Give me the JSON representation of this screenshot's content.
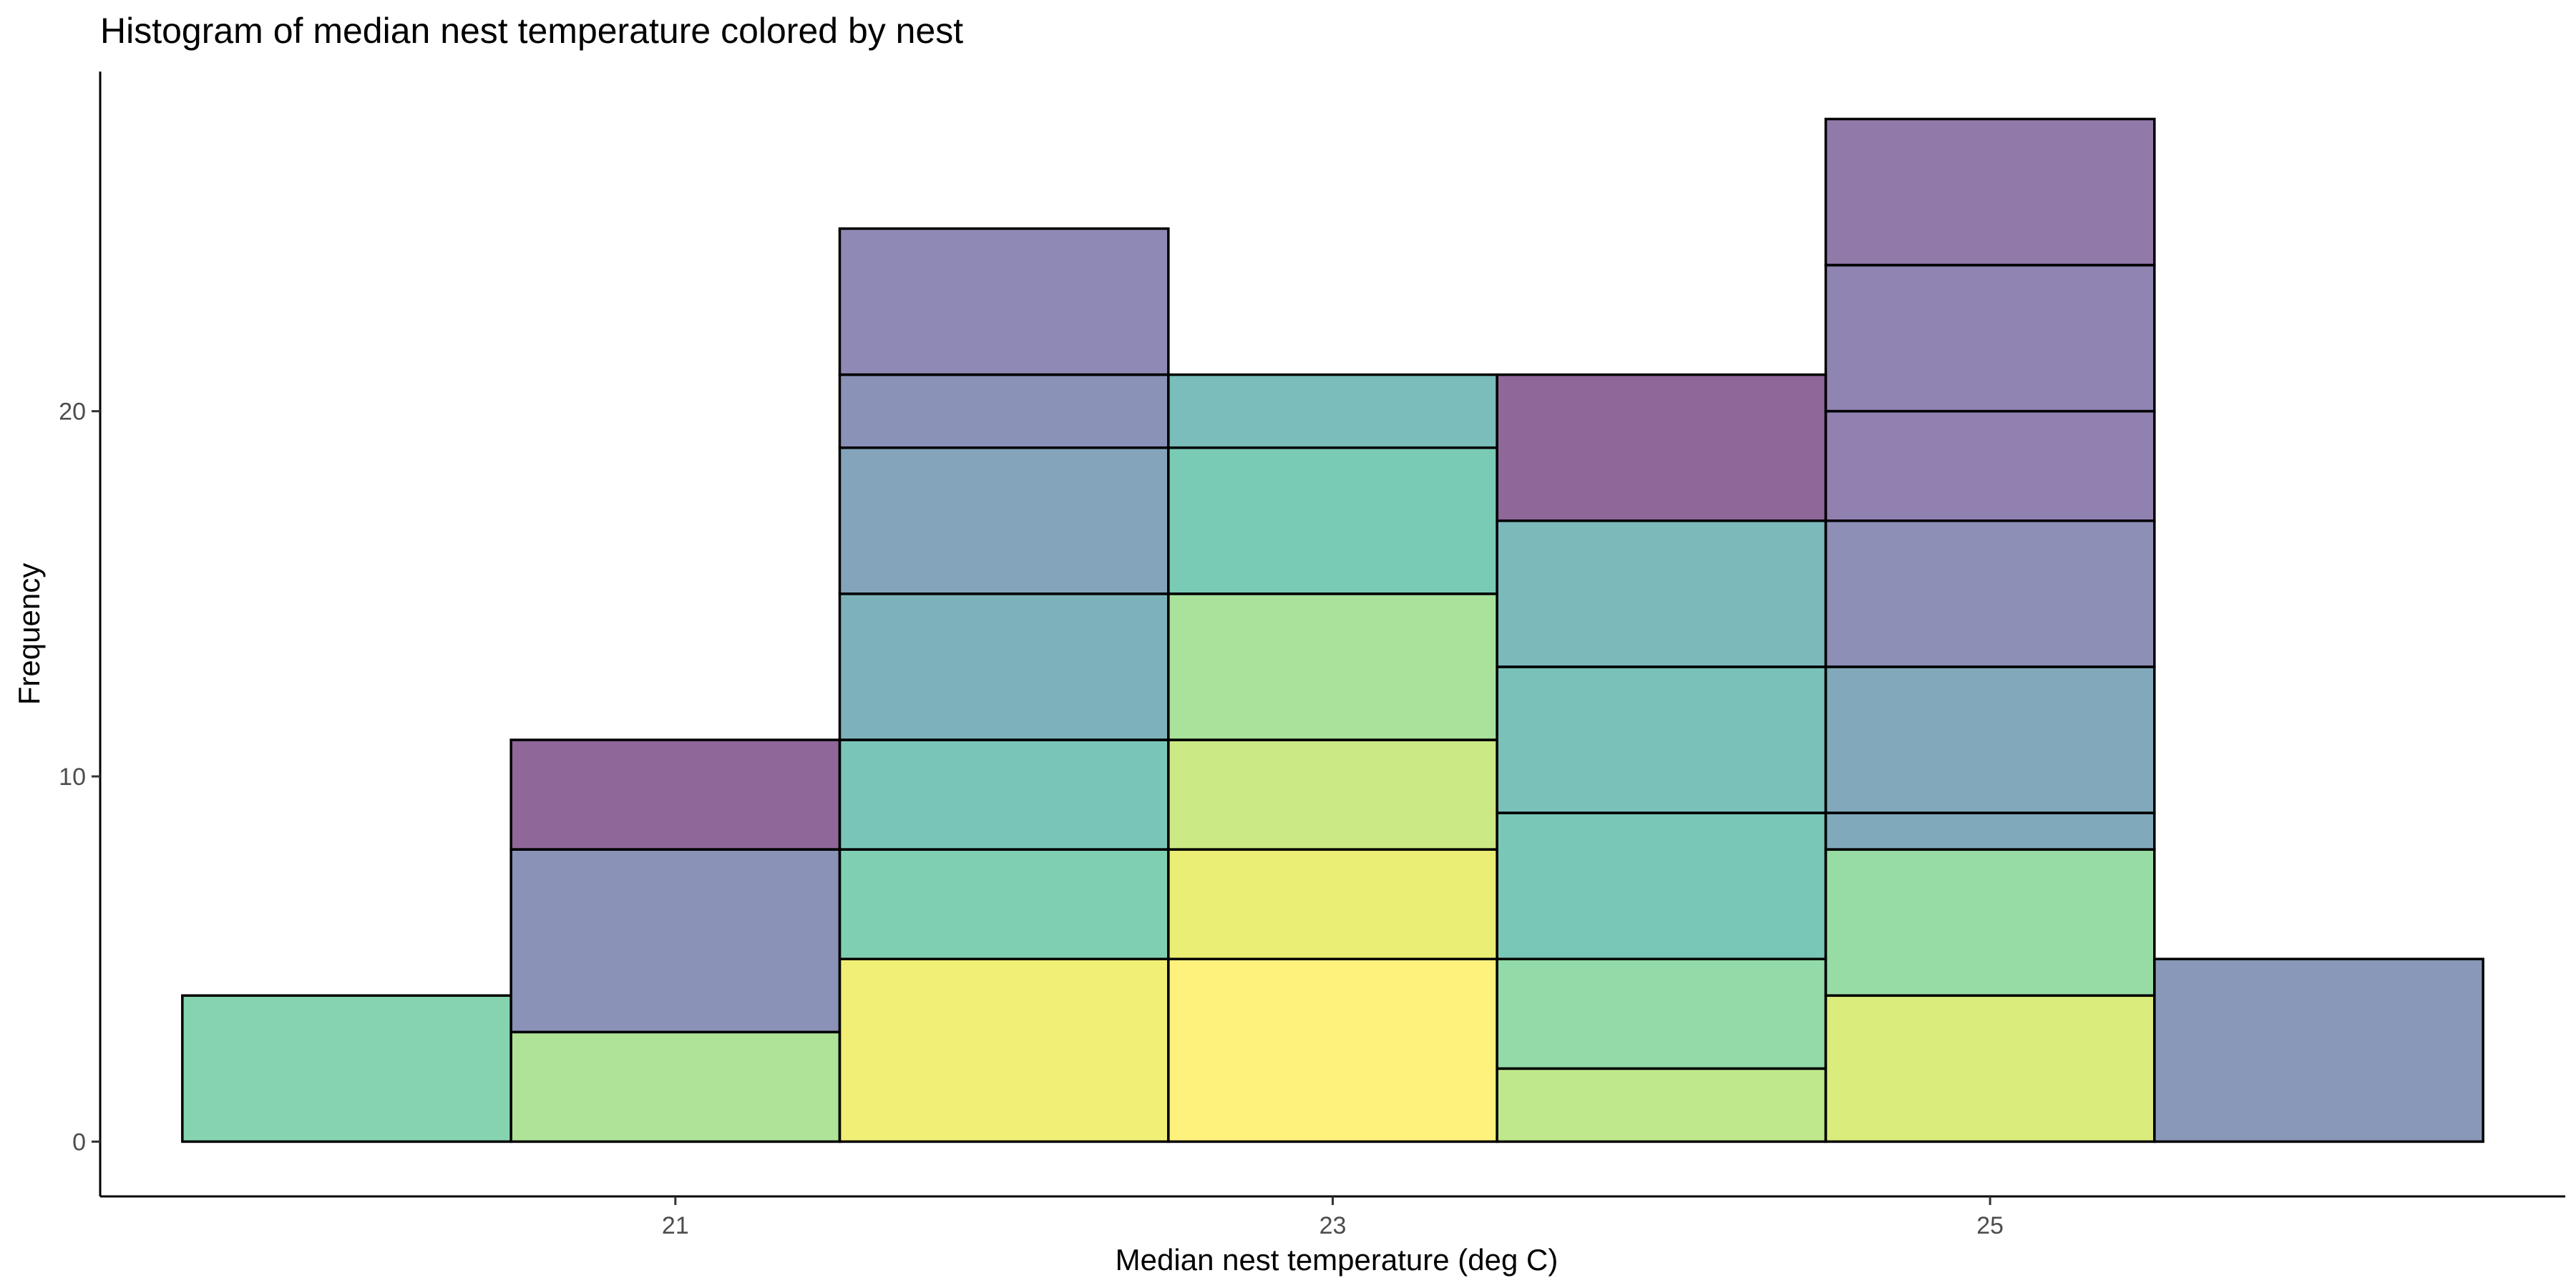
{
  "chart_data": {
    "type": "bar",
    "stacked": true,
    "title": "Histogram of median nest temperature colored by nest",
    "xlabel": "Median nest temperature (deg C)",
    "ylabel": "Frequency",
    "binwidth": 1,
    "xlim": [
      19.25,
      26.75
    ],
    "ylim": [
      -1.5,
      29.3
    ],
    "x_ticks": [
      21,
      23,
      25
    ],
    "y_ticks": [
      0,
      10,
      20
    ],
    "legend": "none",
    "opacity": 0.6,
    "bins": [
      {
        "center": 20,
        "segments": [
          {
            "count": 4,
            "color": "#35b779"
          }
        ]
      },
      {
        "center": 21,
        "segments": [
          {
            "count": 3,
            "color": "#7ad151"
          },
          {
            "count": 5,
            "color": "#3e4a89"
          },
          {
            "count": 3,
            "color": "#440154"
          }
        ]
      },
      {
        "center": 22,
        "segments": [
          {
            "count": 5,
            "color": "#e8e419"
          },
          {
            "count": 3,
            "color": "#2ab07f"
          },
          {
            "count": 3,
            "color": "#1fa088"
          },
          {
            "count": 4,
            "color": "#277f8e"
          },
          {
            "count": 4,
            "color": "#31688e"
          },
          {
            "count": 2,
            "color": "#3e4989"
          },
          {
            "count": 4,
            "color": "#443a83"
          }
        ]
      },
      {
        "center": 23,
        "segments": [
          {
            "count": 5,
            "color": "#fde725"
          },
          {
            "count": 3,
            "color": "#dde318"
          },
          {
            "count": 3,
            "color": "#a8db34"
          },
          {
            "count": 4,
            "color": "#6ece58"
          },
          {
            "count": 4,
            "color": "#22a884"
          },
          {
            "count": 2,
            "color": "#21918c"
          }
        ]
      },
      {
        "center": 24,
        "segments": [
          {
            "count": 2,
            "color": "#95d840"
          },
          {
            "count": 3,
            "color": "#4ac16d"
          },
          {
            "count": 4,
            "color": "#1fa187"
          },
          {
            "count": 4,
            "color": "#1f988b"
          },
          {
            "count": 4,
            "color": "#238a8d"
          },
          {
            "count": 4,
            "color": "#440154"
          }
        ]
      },
      {
        "center": 25,
        "segments": [
          {
            "count": 4,
            "color": "#c2df23"
          },
          {
            "count": 4,
            "color": "#52c569"
          },
          {
            "count": 1,
            "color": "#2c728e"
          },
          {
            "count": 4,
            "color": "#2d708e"
          },
          {
            "count": 4,
            "color": "#414487"
          },
          {
            "count": 3,
            "color": "#472d7b"
          },
          {
            "count": 4,
            "color": "#46327e"
          },
          {
            "count": 4,
            "color": "#481f70"
          }
        ]
      },
      {
        "center": 26,
        "segments": [
          {
            "count": 5,
            "color": "#3b528b"
          }
        ]
      }
    ]
  }
}
